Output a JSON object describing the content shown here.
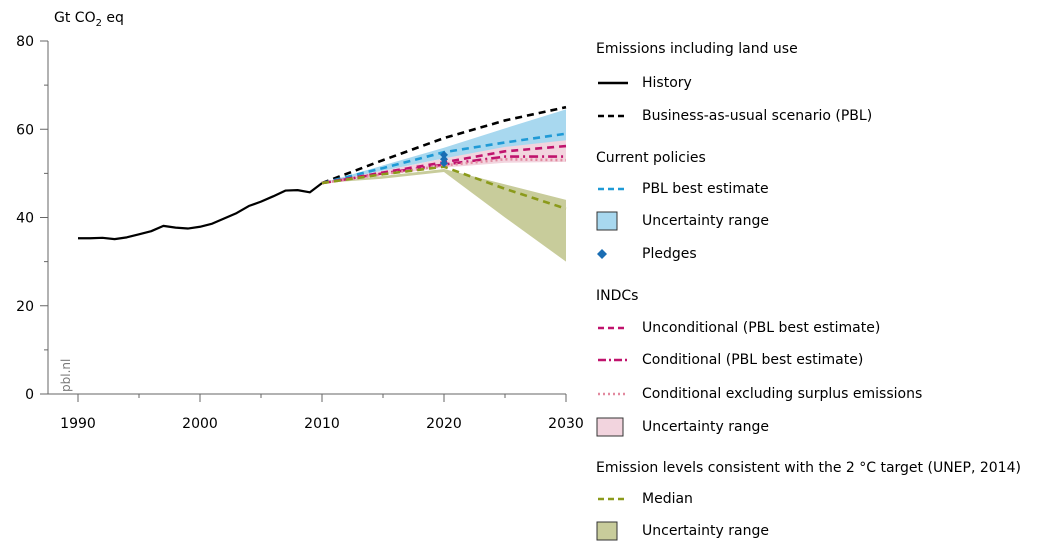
{
  "chart_data": {
    "type": "line",
    "ylabel": "Gt CO2 eq",
    "ylabel_main": "Gt CO",
    "ylabel_sub": "2",
    "ylabel_tail": " eq",
    "ylim": [
      0,
      80
    ],
    "xlim": [
      1990,
      2030
    ],
    "yticks": [
      "0",
      "20",
      "40",
      "60",
      "80"
    ],
    "xticks": [
      "1990",
      "2000",
      "2010",
      "2020",
      "2030"
    ],
    "watermark": "pbl.nl",
    "series": [
      {
        "name": "History",
        "color": "#000000",
        "dash": "solid",
        "x": [
          1990,
          1991,
          1992,
          1993,
          1994,
          1995,
          1996,
          1997,
          1998,
          1999,
          2000,
          2001,
          2002,
          2003,
          2004,
          2005,
          2006,
          2007,
          2008,
          2009,
          2010
        ],
        "values": [
          35.3,
          35.3,
          35.4,
          35.1,
          35.5,
          36.2,
          36.9,
          38.1,
          37.7,
          37.5,
          37.9,
          38.6,
          39.8,
          41.0,
          42.6,
          43.6,
          44.8,
          46.1,
          46.2,
          45.7,
          47.8
        ]
      },
      {
        "name": "Business-as-usual scenario (PBL)",
        "color": "#000000",
        "dash": "dash",
        "x": [
          2010,
          2015,
          2020,
          2025,
          2030
        ],
        "values": [
          47.8,
          53.0,
          58.0,
          62.0,
          65.0
        ]
      },
      {
        "name": "PBL best estimate",
        "color": "#1f9ad6",
        "dash": "dash",
        "x": [
          2010,
          2015,
          2020,
          2025,
          2030
        ],
        "values": [
          47.8,
          51.2,
          54.8,
          57.0,
          59.0
        ]
      },
      {
        "name": "Unconditional (PBL best estimate)",
        "color": "#c0136d",
        "dash": "dash",
        "x": [
          2010,
          2015,
          2020,
          2025,
          2030
        ],
        "values": [
          47.8,
          50.2,
          52.5,
          55.0,
          56.2
        ]
      },
      {
        "name": "Conditional (PBL best estimate)",
        "color": "#c0136d",
        "dash": "dashdot",
        "x": [
          2010,
          2015,
          2020,
          2025,
          2030
        ],
        "values": [
          47.8,
          50.0,
          52.0,
          53.8,
          53.8
        ]
      },
      {
        "name": "Conditional excluding surplus emissions",
        "color": "#e2899f",
        "dash": "dot",
        "x": [
          2010,
          2015,
          2020,
          2025,
          2030
        ],
        "values": [
          47.8,
          49.8,
          51.8,
          53.2,
          53.0
        ]
      },
      {
        "name": "Median",
        "color": "#8b9a1b",
        "dash": "dash",
        "x": [
          2010,
          2015,
          2020,
          2025,
          2030
        ],
        "values": [
          47.8,
          49.8,
          51.5,
          46.5,
          42.0
        ]
      }
    ],
    "bands": [
      {
        "name": "Current policies uncertainty range",
        "color": "#a8d8ef",
        "x": [
          2010,
          2015,
          2020,
          2025,
          2030
        ],
        "upper": [
          47.8,
          51.8,
          55.8,
          60.2,
          64.5
        ],
        "lower": [
          47.8,
          50.6,
          53.4,
          55.0,
          55.5
        ]
      },
      {
        "name": "INDC uncertainty range",
        "color": "#f2d4de",
        "x": [
          2010,
          2015,
          2020,
          2025,
          2030
        ],
        "upper": [
          47.8,
          50.6,
          53.4,
          56.0,
          57.5
        ],
        "lower": [
          47.8,
          49.6,
          51.3,
          52.4,
          52.6
        ]
      },
      {
        "name": "2 °C target uncertainty range",
        "color": "#c8cc9b",
        "x": [
          2010,
          2015,
          2020,
          2025,
          2030
        ],
        "upper": [
          47.8,
          49.4,
          51.0,
          47.5,
          44.0
        ],
        "lower": [
          47.8,
          48.8,
          50.3,
          40.0,
          30.0
        ]
      }
    ],
    "points": [
      {
        "name": "Pledges",
        "color": "#1a6db3",
        "x": 2020,
        "values": [
          54.2,
          53.2,
          52.3
        ]
      }
    ],
    "legend_placement": "right",
    "grid": false
  },
  "legend": {
    "group1_title": "Emissions including land use",
    "history": "History",
    "bau": "Business-as-usual scenario (PBL)",
    "group2_title": "Current policies",
    "cp_best": "PBL best estimate",
    "cp_range": "Uncertainty range",
    "pledges": "Pledges",
    "group3_title": "INDCs",
    "indc_uncond": "Unconditional (PBL best estimate)",
    "indc_cond": "Conditional (PBL best estimate)",
    "indc_surplus": "Conditional excluding surplus emissions",
    "indc_range": "Uncertainty range",
    "group4_title": "Emission levels consistent with the 2 °C target (UNEP, 2014)",
    "target_median": "Median",
    "target_range": "Uncertainty range"
  }
}
